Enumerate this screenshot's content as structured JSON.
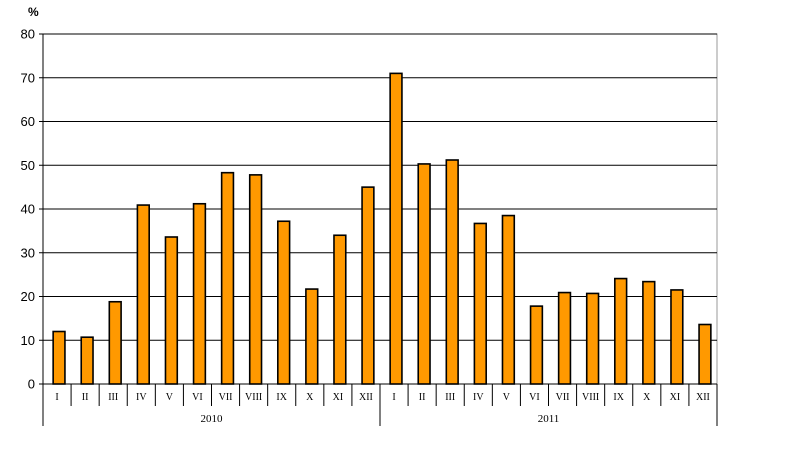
{
  "chart_data": {
    "type": "bar",
    "ylabel": "%",
    "ylim": [
      0,
      80
    ],
    "yticks": [
      0,
      10,
      20,
      30,
      40,
      50,
      60,
      70,
      80
    ],
    "grid": true,
    "bar_color": "#FF9900",
    "groups": [
      {
        "label": "2010",
        "categories": [
          "I",
          "II",
          "III",
          "IV",
          "V",
          "VI",
          "VII",
          "VIII",
          "IX",
          "X",
          "XI",
          "XII"
        ]
      },
      {
        "label": "2011",
        "categories": [
          "I",
          "II",
          "III",
          "IV",
          "V",
          "VI",
          "VII",
          "VIII",
          "IX",
          "X",
          "XI",
          "XII"
        ]
      }
    ],
    "values": [
      12,
      10.7,
      18.8,
      40.9,
      33.6,
      41.2,
      48.3,
      47.8,
      37.2,
      21.7,
      34,
      45,
      71,
      50.3,
      51.2,
      36.7,
      38.5,
      17.8,
      20.9,
      20.7,
      24.1,
      23.4,
      21.5,
      13.6
    ]
  }
}
